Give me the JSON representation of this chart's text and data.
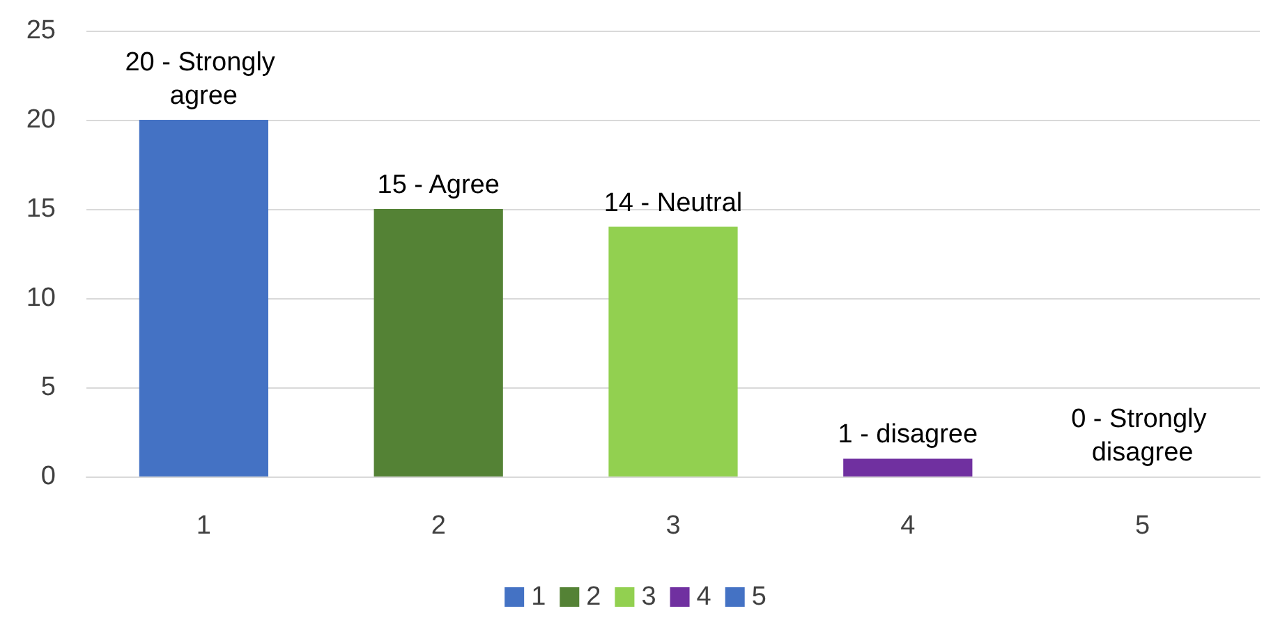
{
  "chart_data": {
    "type": "bar",
    "stacked": true,
    "categories": [
      "1",
      "2",
      "3",
      "4",
      "5"
    ],
    "series": [
      {
        "name": "1",
        "color": "#4472c4",
        "values": [
          20,
          null,
          null,
          null,
          null
        ],
        "value_labels": [
          "20 - Strongly agree",
          null,
          null,
          null,
          null
        ]
      },
      {
        "name": "2",
        "color": "#548235",
        "values": [
          null,
          15,
          null,
          null,
          null
        ],
        "value_labels": [
          null,
          "15 - Agree",
          null,
          null,
          null
        ]
      },
      {
        "name": "3",
        "color": "#92d050",
        "values": [
          null,
          null,
          14,
          null,
          null
        ],
        "value_labels": [
          null,
          null,
          "14 - Neutral",
          null,
          null
        ]
      },
      {
        "name": "4",
        "color": "#7030a0",
        "values": [
          null,
          null,
          null,
          1,
          null
        ],
        "value_labels": [
          null,
          null,
          null,
          "1 - disagree",
          null
        ]
      },
      {
        "name": "5",
        "color": "#4472c4",
        "values": [
          null,
          null,
          null,
          null,
          0
        ],
        "value_labels": [
          null,
          null,
          null,
          null,
          "0 - Strongly disagree"
        ]
      }
    ],
    "ylim": [
      0,
      25
    ],
    "yticks": [
      0,
      5,
      10,
      15,
      20,
      25
    ],
    "grid": "y",
    "legend": "bottom"
  }
}
